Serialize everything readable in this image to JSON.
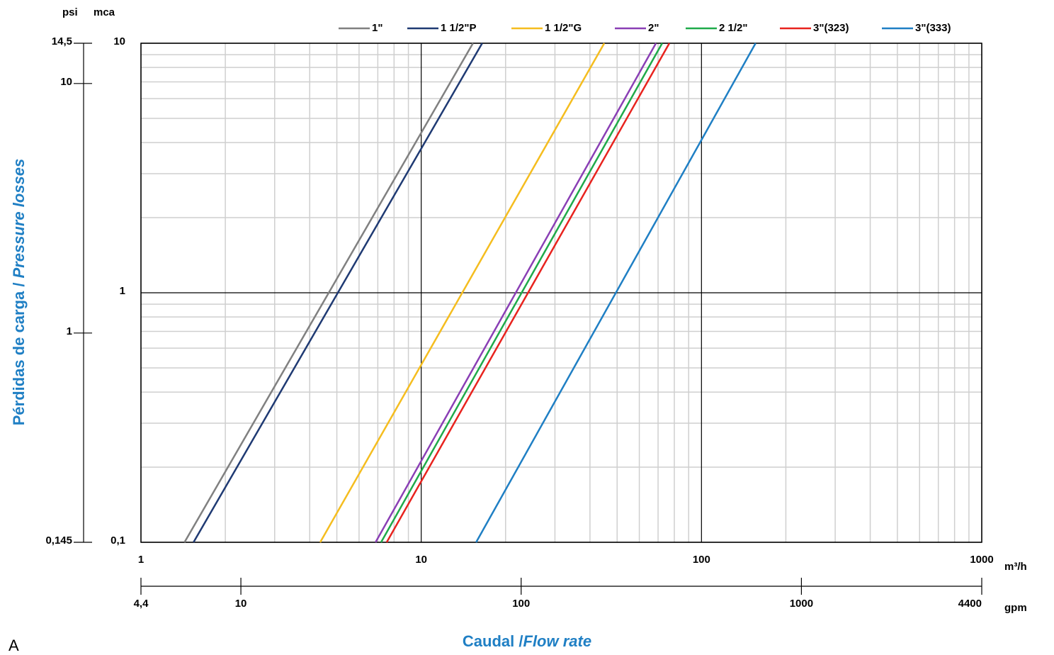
{
  "chart_data": {
    "type": "line",
    "log_x": true,
    "log_y": true,
    "grid": true,
    "ylabel": "Pérdidas de carga /",
    "ylabel_italic": "Pressure losses",
    "xlabel": "Caudal /",
    "xlabel_italic": "Flow rate",
    "corner_label": "A",
    "x_unit": "m³/h",
    "x2_unit": "gpm",
    "y_unit": "mca",
    "y2_unit": "psi",
    "xlim": [
      1,
      1000
    ],
    "xticks": [
      1,
      10,
      100,
      1000
    ],
    "xminor": [
      2,
      3,
      4,
      5,
      6,
      7,
      8,
      9,
      20,
      30,
      40,
      50,
      60,
      70,
      80,
      90,
      200,
      300,
      400,
      500,
      600,
      700,
      800,
      900
    ],
    "x2lim": [
      4.4,
      4400
    ],
    "x2ticks": [
      {
        "value": 4.4,
        "label": "4,4"
      },
      10,
      100,
      1000,
      4400
    ],
    "ylim": [
      0.1,
      10
    ],
    "yticks": [
      {
        "value": 0.1,
        "label": "0,1"
      },
      1,
      10
    ],
    "yminor": [
      0.2,
      0.3,
      0.4,
      0.5,
      0.6,
      0.7,
      0.8,
      0.9,
      2,
      3,
      4,
      5,
      6,
      7,
      8,
      9
    ],
    "y2lim": [
      0.145,
      14.5
    ],
    "y2ticks": [
      {
        "value": 0.145,
        "label": "0,145"
      },
      1,
      10,
      {
        "value": 14.5,
        "label": "14,5"
      }
    ],
    "series": [
      {
        "name": "1\"",
        "color": "#808080",
        "x": [
          1.43,
          15.3
        ],
        "values": [
          0.1,
          10
        ]
      },
      {
        "name": "1 1/2\"P",
        "color": "#1f3a73",
        "x": [
          1.54,
          16.5
        ],
        "values": [
          0.1,
          10
        ]
      },
      {
        "name": "1 1/2\"G",
        "color": "#f5bd1f",
        "x": [
          4.36,
          45
        ],
        "values": [
          0.1,
          10
        ]
      },
      {
        "name": "2\"",
        "color": "#8a3fb5",
        "x": [
          6.87,
          68.8
        ],
        "values": [
          0.1,
          10
        ]
      },
      {
        "name": "2 1/2\"",
        "color": "#1faa4a",
        "x": [
          7.19,
          72.4
        ],
        "values": [
          0.1,
          10
        ]
      },
      {
        "name": "3\"(323)",
        "color": "#e8231e",
        "x": [
          7.53,
          76.8
        ],
        "values": [
          0.1,
          10
        ]
      },
      {
        "name": "3\"(333)",
        "color": "#1f7fc4",
        "x": [
          15.7,
          156
        ],
        "values": [
          0.1,
          10
        ]
      }
    ]
  }
}
